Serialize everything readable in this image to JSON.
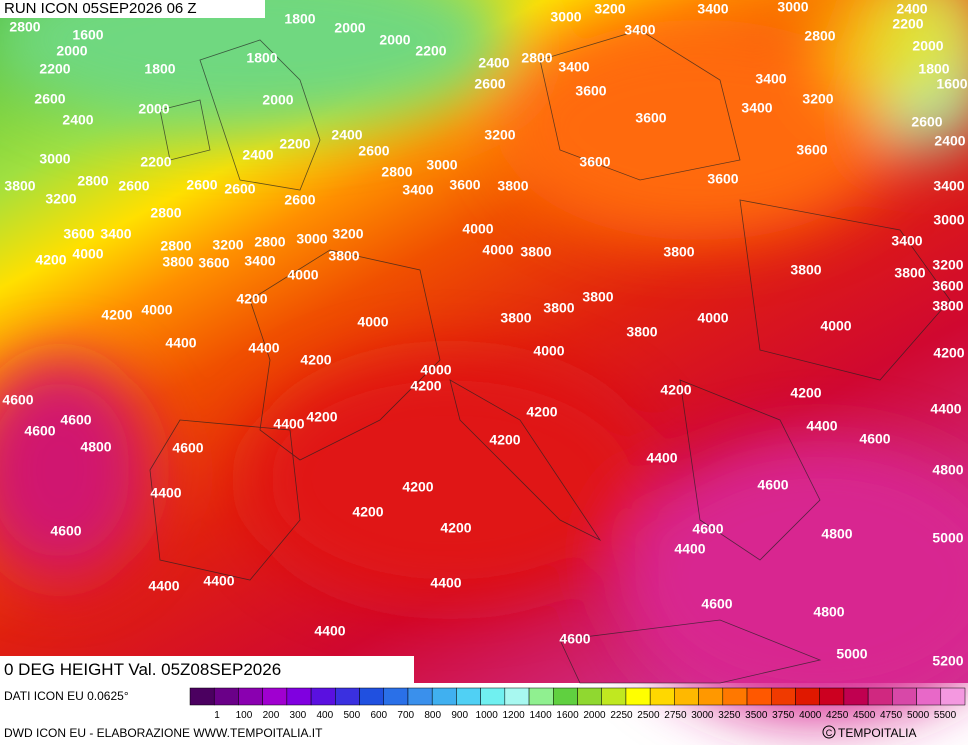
{
  "header": {
    "run": "RUN ICON 05SEP2026 06 Z",
    "field": "0 DEG HEIGHT Val. 05Z08SEP2026"
  },
  "footer": {
    "source": "DATI ICON EU 0.0625°",
    "credit": "DWD ICON EU - ELABORAZIONE WWW.TEMPOITALIA.IT",
    "copyright": "TEMPOITALIA"
  },
  "colorbar": {
    "labels": [
      "1",
      "100",
      "200",
      "300",
      "400",
      "500",
      "600",
      "700",
      "800",
      "900",
      "1000",
      "1200",
      "1400",
      "1600",
      "2000",
      "2250",
      "2500",
      "2750",
      "3000",
      "3250",
      "3500",
      "3750",
      "4000",
      "4250",
      "4500",
      "4750",
      "5000",
      "5500"
    ],
    "colors": [
      "#4b0060",
      "#6a0088",
      "#8a00b0",
      "#a000d0",
      "#8000e0",
      "#5a10e0",
      "#3a30e0",
      "#2050e0",
      "#2a70e8",
      "#3a90ec",
      "#40b0f0",
      "#50d0f4",
      "#70f0f0",
      "#a8f8f0",
      "#90f090",
      "#60d040",
      "#90d830",
      "#c0e820",
      "#ffff00",
      "#ffd800",
      "#ffb800",
      "#ff9800",
      "#ff7800",
      "#ff5800",
      "#f03a00",
      "#e01800",
      "#cc0020",
      "#c00050",
      "#d02880",
      "#d848a8",
      "#e868c8",
      "#f498e0"
    ]
  },
  "contour_labels": [
    2800,
    1600,
    1800,
    2000,
    2000,
    2000,
    2200,
    3000,
    3200,
    3400,
    3400,
    3000,
    2400,
    2200,
    2800,
    2000,
    2200,
    1800,
    1800,
    2400,
    2800,
    3400,
    3400,
    1800,
    1600,
    2600,
    2000,
    2600,
    3600,
    3200,
    2400,
    2000,
    2400,
    3200,
    3600,
    3400,
    2600,
    2200,
    2400,
    2600,
    2400,
    3000,
    2200,
    3000,
    3600,
    3600,
    2800,
    3800,
    2800,
    2600,
    2600,
    2600,
    3400,
    3600,
    3800,
    3600,
    3400,
    3200,
    2600,
    2800,
    3000,
    3600,
    3400,
    4000,
    3200,
    3000,
    2800,
    3200,
    2800,
    3400,
    4200,
    4000,
    3800,
    3600,
    3400,
    3800,
    4000,
    3800,
    3800,
    3200,
    4000,
    3800,
    3800,
    3600,
    4200,
    3800,
    3800,
    4200,
    4000,
    4000,
    3800,
    3800,
    4000,
    4000,
    4400,
    3800,
    4400,
    4000,
    4200,
    4200,
    4000,
    4200,
    4200,
    4200,
    4600,
    4200,
    4400,
    4600,
    4600,
    4200,
    4400,
    4800,
    4200,
    4400,
    4600,
    4600,
    4400,
    4800,
    4400,
    4200,
    4600,
    4200,
    4200,
    4600,
    4600,
    4800,
    4400,
    5000,
    4400,
    4400,
    4400,
    4600,
    4800,
    4400,
    4600,
    5000,
    5200
  ]
}
